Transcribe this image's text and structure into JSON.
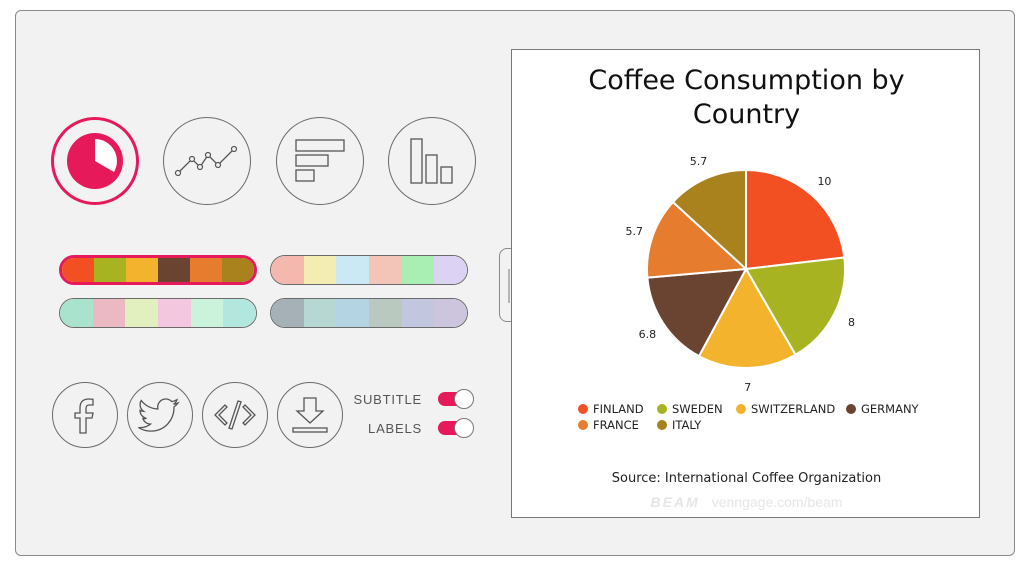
{
  "toolbar": {
    "chart_types": [
      {
        "id": "pie",
        "icon": "pie-chart-icon",
        "active": true
      },
      {
        "id": "line",
        "icon": "line-chart-icon",
        "active": false
      },
      {
        "id": "hbar",
        "icon": "horizontal-bar-chart-icon",
        "active": false
      },
      {
        "id": "vbar",
        "icon": "vertical-bar-chart-icon",
        "active": false
      }
    ],
    "palettes": [
      {
        "colors": [
          "#f25022",
          "#a8b321",
          "#f3b32c",
          "#6a4430",
          "#e57c2e",
          "#a9821d"
        ],
        "active": true
      },
      {
        "colors": [
          "#f4b8ae",
          "#f3ecb3",
          "#cbe9f4",
          "#f3c4b8",
          "#a9eeb2",
          "#dcd3f4"
        ],
        "active": false
      },
      {
        "colors": [
          "#a9e3cd",
          "#ebb9c2",
          "#e2efbf",
          "#f3c7df",
          "#cbf3dc",
          "#b2e7df"
        ],
        "active": false
      },
      {
        "colors": [
          "#a6b0b7",
          "#b7d7d3",
          "#b4d3e3",
          "#b9c9bf",
          "#c2c7df",
          "#cdc5de"
        ],
        "active": false
      }
    ],
    "share": [
      {
        "id": "facebook",
        "icon": "facebook-icon"
      },
      {
        "id": "twitter",
        "icon": "twitter-icon"
      },
      {
        "id": "embed",
        "icon": "code-icon"
      },
      {
        "id": "download",
        "icon": "download-icon"
      }
    ],
    "toggles": {
      "subtitle": {
        "label": "SUBTITLE",
        "on": true
      },
      "labels": {
        "label": "LABELS",
        "on": true
      }
    },
    "accent_color": "#e6195a"
  },
  "chart": {
    "source": "Source: International Coffee Organization",
    "watermark_brand": "BEAM",
    "watermark_url": "venngage.com/beam"
  },
  "chart_data": {
    "type": "pie",
    "title": "Coffee Consumption by Country",
    "categories": [
      "FINLAND",
      "SWEDEN",
      "SWITZERLAND",
      "GERMANY",
      "FRANCE",
      "ITALY"
    ],
    "values": [
      10,
      8,
      7,
      6.8,
      5.7,
      5.7
    ],
    "colors": [
      "#f25022",
      "#a8b321",
      "#f3b32c",
      "#6a4430",
      "#e57c2e",
      "#a9821d"
    ],
    "data_labels": [
      "10",
      "8",
      "7",
      "6.8",
      "5.7",
      "5.7"
    ],
    "legend_position": "bottom"
  }
}
